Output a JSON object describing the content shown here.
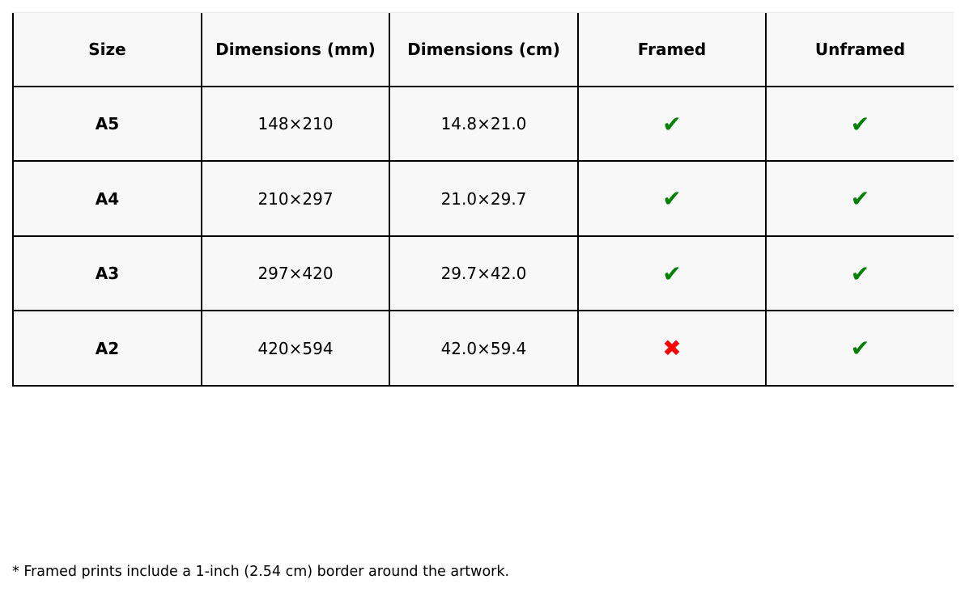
{
  "table": {
    "headers": [
      "Size",
      "Dimensions (mm)",
      "Dimensions (cm)",
      "Framed",
      "Unframed"
    ],
    "rows": [
      {
        "size": "A5",
        "mm": "148×210",
        "cm": "14.8×21.0",
        "framed": true,
        "unframed": true
      },
      {
        "size": "A4",
        "mm": "210×297",
        "cm": "21.0×29.7",
        "framed": true,
        "unframed": true
      },
      {
        "size": "A3",
        "mm": "297×420",
        "cm": "29.7×42.0",
        "framed": true,
        "unframed": true
      },
      {
        "size": "A2",
        "mm": "420×594",
        "cm": "42.0×59.4",
        "framed": false,
        "unframed": true
      }
    ],
    "check_glyph": "✔",
    "cross_glyph": "✖",
    "colors": {
      "check": "#008000",
      "cross": "#ff0000",
      "cell_fill": "#f8f8f8"
    }
  },
  "footnote": "* Framed prints include a 1-inch (2.54 cm) border around the artwork."
}
